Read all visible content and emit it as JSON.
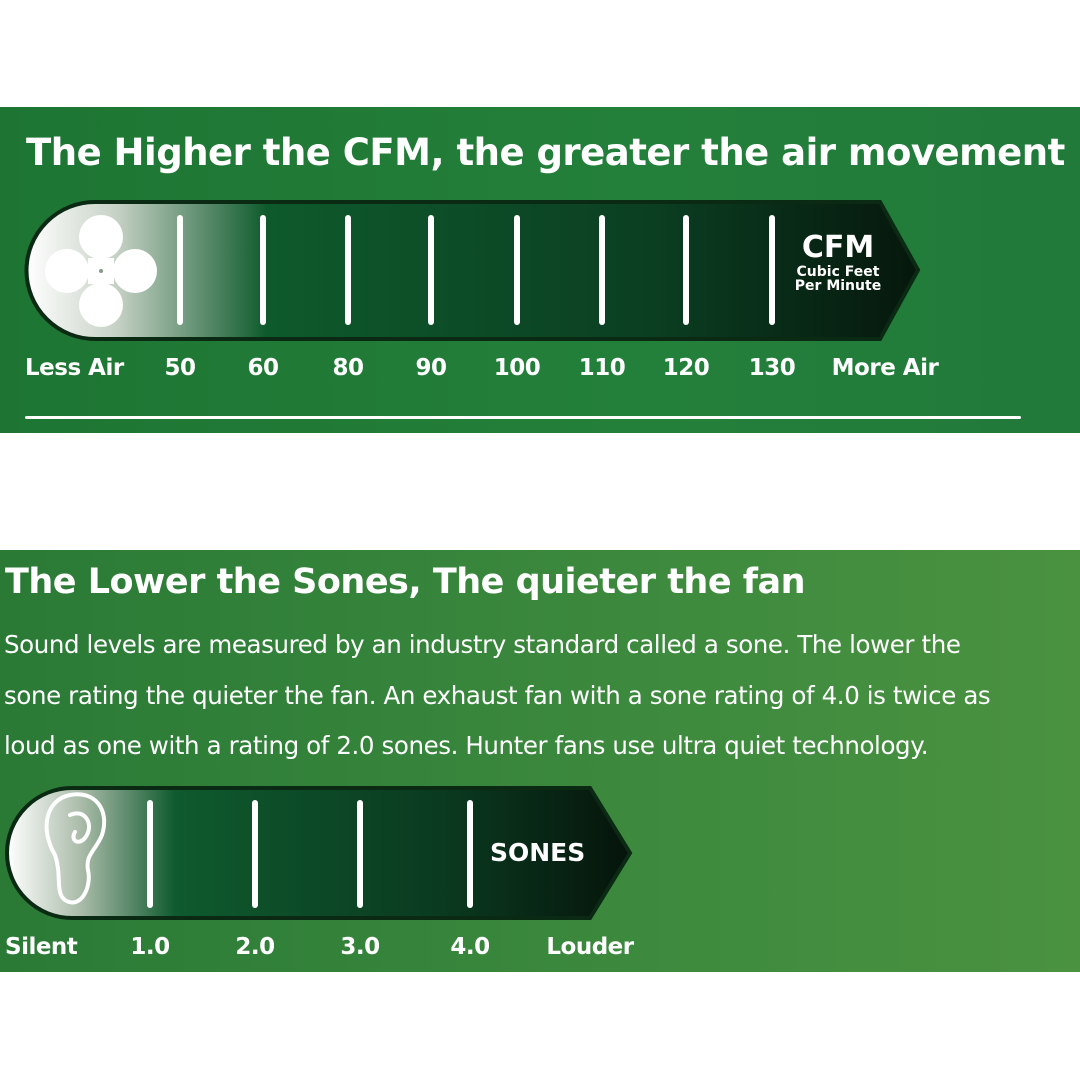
{
  "cfm_panel": {
    "title": "The Higher the CFM, the greater the air movement",
    "icon": "fan-icon",
    "unit_abbr": "CFM",
    "unit_full_line1": "Cubic Feet",
    "unit_full_line2": "Per Minute",
    "min_label": "Less Air",
    "max_label": "More Air",
    "ticks": [
      "50",
      "60",
      "80",
      "90",
      "100",
      "110",
      "120",
      "130"
    ]
  },
  "sones_panel": {
    "title": "The Lower the Sones, The quieter the fan",
    "paragraph_lines": [
      "Sound levels are measured by an industry standard called a sone. The lower the",
      "sone rating the quieter the fan. An exhaust fan with a sone rating of 4.0 is twice as",
      "loud as one with a rating of 2.0 sones. Hunter fans use ultra quiet technology."
    ],
    "icon": "ear-icon",
    "unit_abbr": "SONES",
    "min_label": "Silent",
    "max_label": "Louder",
    "ticks": [
      "1.0",
      "2.0",
      "3.0",
      "4.0"
    ]
  },
  "colors": {
    "panel_green": "#1f7a35",
    "bar_dark": "#0c2a18",
    "text": "#ffffff"
  }
}
